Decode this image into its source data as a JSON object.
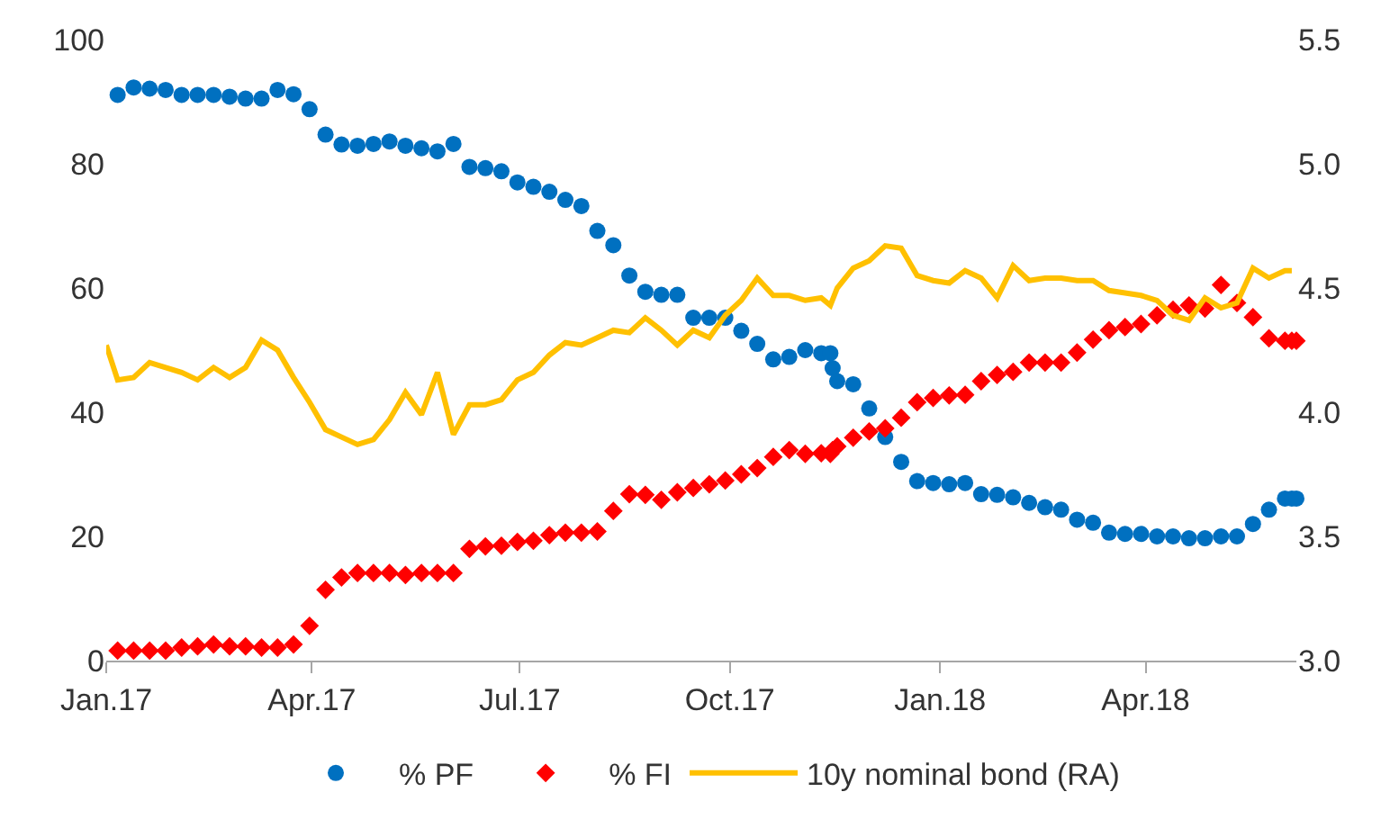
{
  "chart_data": {
    "type": "scatter",
    "legend": "bottom",
    "x": [
      "2017-01-06",
      "2017-01-13",
      "2017-01-20",
      "2017-01-27",
      "2017-02-03",
      "2017-02-10",
      "2017-02-17",
      "2017-02-24",
      "2017-03-03",
      "2017-03-10",
      "2017-03-17",
      "2017-03-24",
      "2017-03-31",
      "2017-04-07",
      "2017-04-14",
      "2017-04-21",
      "2017-04-28",
      "2017-05-05",
      "2017-05-12",
      "2017-05-19",
      "2017-05-26",
      "2017-06-02",
      "2017-06-09",
      "2017-06-16",
      "2017-06-23",
      "2017-06-30",
      "2017-07-07",
      "2017-07-14",
      "2017-07-21",
      "2017-07-28",
      "2017-08-04",
      "2017-08-11",
      "2017-08-18",
      "2017-08-25",
      "2017-09-01",
      "2017-09-08",
      "2017-09-15",
      "2017-09-22",
      "2017-09-29",
      "2017-10-06",
      "2017-10-13",
      "2017-10-20",
      "2017-10-27",
      "2017-11-03",
      "2017-11-10",
      "2017-11-14",
      "2017-11-15",
      "2017-11-17",
      "2017-11-24",
      "2017-12-01",
      "2017-12-08",
      "2017-12-15",
      "2017-12-22",
      "2017-12-29",
      "2018-01-05",
      "2018-01-12",
      "2018-01-19",
      "2018-01-26",
      "2018-02-02",
      "2018-02-09",
      "2018-02-16",
      "2018-02-23",
      "2018-03-02",
      "2018-03-09",
      "2018-03-16",
      "2018-03-23",
      "2018-03-30",
      "2018-04-06",
      "2018-04-13",
      "2018-04-20",
      "2018-04-27",
      "2018-05-04",
      "2018-05-11",
      "2018-05-18",
      "2018-05-25",
      "2018-06-01",
      "2018-06-04",
      "2018-06-06"
    ],
    "series": [
      {
        "name": "% PF",
        "color": "#0070c0",
        "marker": "circle",
        "values": [
          91.1,
          92.3,
          92.1,
          91.9,
          91.1,
          91.1,
          91.1,
          90.8,
          90.5,
          90.5,
          91.9,
          91.2,
          88.8,
          84.7,
          83.1,
          82.9,
          83.2,
          83.6,
          82.9,
          82.5,
          82.0,
          83.2,
          79.5,
          79.3,
          78.8,
          77.0,
          76.3,
          75.5,
          74.2,
          73.2,
          69.2,
          66.9,
          62.0,
          59.4,
          58.9,
          58.9,
          55.2,
          55.2,
          55.2,
          53.1,
          51.0,
          48.5,
          48.9,
          50.0,
          49.5,
          49.5,
          47.1,
          45.0,
          44.5,
          40.6,
          36.0,
          32.0,
          28.9,
          28.6,
          28.4,
          28.6,
          26.8,
          26.7,
          26.3,
          25.4,
          24.7,
          24.3,
          22.7,
          22.2,
          20.6,
          20.4,
          20.4,
          20.0,
          20.0,
          19.7,
          19.7,
          20.0,
          20.0,
          22.0,
          24.3,
          26.1,
          26.1,
          26.1
        ]
      },
      {
        "name": "% FI",
        "color": "#ff0000",
        "marker": "diamond",
        "values": [
          1.6,
          1.6,
          1.6,
          1.6,
          2.1,
          2.3,
          2.6,
          2.3,
          2.3,
          2.1,
          2.1,
          2.6,
          5.6,
          11.4,
          13.4,
          14.1,
          14.1,
          14.1,
          13.8,
          14.1,
          14.1,
          14.1,
          18.0,
          18.4,
          18.5,
          19.1,
          19.3,
          20.2,
          20.6,
          20.6,
          20.8,
          24.1,
          26.8,
          26.7,
          25.9,
          27.1,
          27.8,
          28.4,
          29.0,
          30.0,
          31.0,
          32.8,
          33.9,
          33.3,
          33.4,
          33.3,
          33.9,
          34.5,
          35.9,
          36.9,
          37.4,
          39.1,
          41.6,
          42.3,
          42.7,
          42.8,
          45.0,
          46.0,
          46.5,
          48.0,
          48.0,
          48.0,
          49.6,
          51.7,
          53.2,
          53.7,
          54.2,
          55.6,
          56.5,
          57.2,
          56.7,
          60.5,
          57.6,
          55.3,
          51.9,
          51.5,
          51.5,
          51.5
        ]
      },
      {
        "name": "10y nominal bond (RA)",
        "color": "#ffc000",
        "type": "line",
        "marker": "none",
        "axis": "y2",
        "x": [
          "2017-01-01",
          "2017-01-06",
          "2017-01-13",
          "2017-01-20",
          "2017-01-27",
          "2017-02-03",
          "2017-02-10",
          "2017-02-17",
          "2017-02-24",
          "2017-03-03",
          "2017-03-10",
          "2017-03-17",
          "2017-03-24",
          "2017-03-31",
          "2017-04-07",
          "2017-04-14",
          "2017-04-21",
          "2017-04-28",
          "2017-05-05",
          "2017-05-12",
          "2017-05-19",
          "2017-05-26",
          "2017-06-02",
          "2017-06-09",
          "2017-06-16",
          "2017-06-23",
          "2017-06-30",
          "2017-07-07",
          "2017-07-14",
          "2017-07-21",
          "2017-07-28",
          "2017-08-04",
          "2017-08-11",
          "2017-08-18",
          "2017-08-25",
          "2017-09-01",
          "2017-09-08",
          "2017-09-15",
          "2017-09-22",
          "2017-09-29",
          "2017-10-06",
          "2017-10-13",
          "2017-10-20",
          "2017-10-27",
          "2017-11-03",
          "2017-11-10",
          "2017-11-14",
          "2017-11-17",
          "2017-11-24",
          "2017-12-01",
          "2017-12-08",
          "2017-12-15",
          "2017-12-22",
          "2017-12-29",
          "2018-01-05",
          "2018-01-12",
          "2018-01-19",
          "2018-01-26",
          "2018-02-02",
          "2018-02-09",
          "2018-02-16",
          "2018-02-23",
          "2018-03-02",
          "2018-03-09",
          "2018-03-16",
          "2018-03-23",
          "2018-03-30",
          "2018-04-06",
          "2018-04-13",
          "2018-04-20",
          "2018-04-27",
          "2018-05-04",
          "2018-05-11",
          "2018-05-18",
          "2018-05-25",
          "2018-06-01",
          "2018-06-04"
        ],
        "values": [
          4.27,
          4.13,
          4.14,
          4.2,
          4.18,
          4.16,
          4.13,
          4.18,
          4.14,
          4.18,
          4.29,
          4.25,
          4.14,
          4.04,
          3.93,
          3.9,
          3.87,
          3.89,
          3.97,
          4.08,
          3.99,
          4.16,
          3.91,
          4.03,
          4.03,
          4.05,
          4.13,
          4.16,
          4.23,
          4.28,
          4.27,
          4.3,
          4.33,
          4.32,
          4.38,
          4.33,
          4.27,
          4.33,
          4.3,
          4.39,
          4.45,
          4.54,
          4.47,
          4.47,
          4.45,
          4.46,
          4.43,
          4.5,
          4.58,
          4.61,
          4.67,
          4.66,
          4.55,
          4.53,
          4.52,
          4.57,
          4.54,
          4.46,
          4.59,
          4.53,
          4.54,
          4.54,
          4.53,
          4.53,
          4.49,
          4.48,
          4.47,
          4.45,
          4.39,
          4.37,
          4.46,
          4.42,
          4.44,
          4.58,
          4.54,
          4.57,
          4.57
        ]
      }
    ],
    "xlim": [
      "2017-01-01",
      "2018-06-06"
    ],
    "xticks": [
      {
        "value": "2017-01-01",
        "label": "Jan.17"
      },
      {
        "value": "2017-04-01",
        "label": "Apr.17"
      },
      {
        "value": "2017-07-01",
        "label": "Jul.17"
      },
      {
        "value": "2017-10-01",
        "label": "Oct.17"
      },
      {
        "value": "2018-01-01",
        "label": "Jan.18"
      },
      {
        "value": "2018-04-01",
        "label": "Apr.18"
      }
    ],
    "ylim": [
      0,
      100
    ],
    "yticks": [
      0,
      20,
      40,
      60,
      80,
      100
    ],
    "y2lim": [
      3.0,
      5.5
    ],
    "y2ticks": [
      {
        "value": 3,
        "label": "3.0"
      },
      {
        "value": 3.5,
        "label": "3.5"
      },
      {
        "value": 4,
        "label": "4.0"
      },
      {
        "value": 4.5,
        "label": "4.5"
      },
      {
        "value": 5,
        "label": "5.0"
      },
      {
        "value": 5.5,
        "label": "5.5"
      }
    ]
  }
}
